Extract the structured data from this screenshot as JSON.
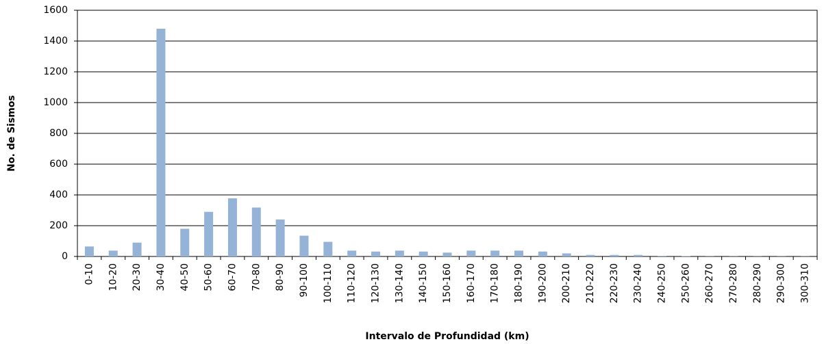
{
  "chart_data": {
    "type": "bar",
    "x_label": "Intervalo de Profundidad (km)",
    "y_label": "No. de Sismos",
    "categories": [
      "0-10",
      "10-20",
      "20-30",
      "30-40",
      "40-50",
      "50-60",
      "60-70",
      "70-80",
      "80-90",
      "90-100",
      "100-110",
      "110-120",
      "120-130",
      "130-140",
      "140-150",
      "150-160",
      "160-170",
      "170-180",
      "180-190",
      "190-200",
      "200-210",
      "210-220",
      "220-230",
      "230-240",
      "240-250",
      "250-260",
      "260-270",
      "270-280",
      "280-290",
      "290-300",
      "300-310"
    ],
    "values": [
      65,
      38,
      90,
      1480,
      180,
      290,
      378,
      318,
      240,
      135,
      95,
      38,
      32,
      38,
      32,
      25,
      38,
      38,
      38,
      32,
      20,
      10,
      10,
      10,
      4,
      2,
      1,
      1,
      1,
      1,
      1
    ],
    "color": "#95b3d7",
    "ylim": [
      0,
      1600
    ],
    "yticks": [
      0,
      200,
      400,
      600,
      800,
      1000,
      1200,
      1400,
      1600
    ],
    "grid": true
  }
}
